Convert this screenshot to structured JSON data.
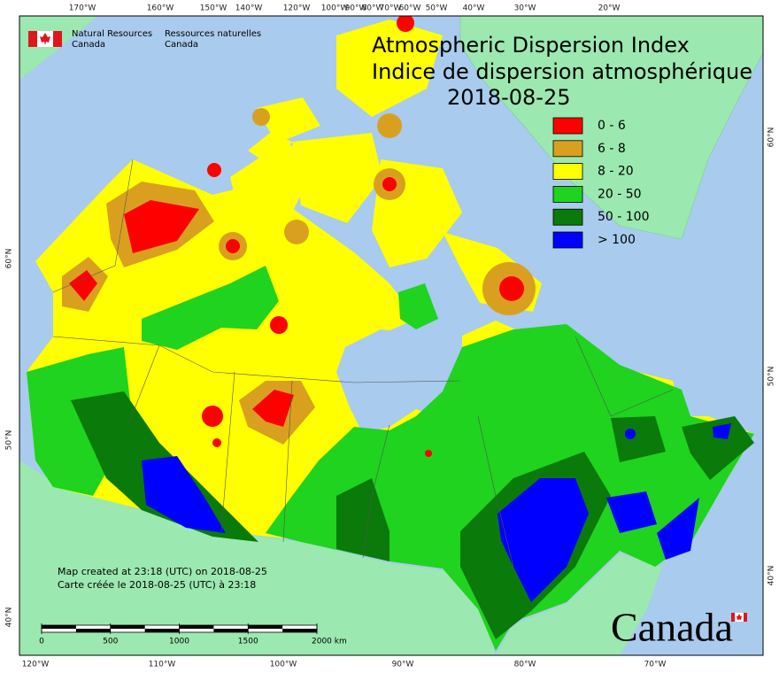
{
  "header": {
    "agency_en": [
      "Natural Resources",
      "Canada"
    ],
    "agency_fr": [
      "Ressources naturelles",
      "Canada"
    ]
  },
  "title": [
    "Atmospheric Dispersion Index",
    "Indice de dispersion atmosphérique",
    "2018-08-25"
  ],
  "legend": [
    {
      "label": "0 - 6",
      "color": "#ff0000"
    },
    {
      "label": "6 - 8",
      "color": "#d9a020"
    },
    {
      "label": "8 - 20",
      "color": "#ffff00"
    },
    {
      "label": "20 - 50",
      "color": "#1fd31f"
    },
    {
      "label": "50 - 100",
      "color": "#0a7a0a"
    },
    {
      "label": "> 100",
      "color": "#0000ff"
    }
  ],
  "top_longitudes": [
    "170°W",
    "160°W",
    "150°W",
    "140°W",
    "120°W",
    "100°W",
    "90°W",
    "80°W",
    "70°W",
    "60°W",
    "50°W",
    "40°W",
    "30°W",
    "20°W"
  ],
  "bottom_longitudes": [
    "120°W",
    "110°W",
    "100°W",
    "90°W",
    "80°W",
    "70°W"
  ],
  "left_latitudes": [
    "60°N",
    "50°N",
    "40°N"
  ],
  "right_latitudes": [
    "60°N",
    "50°N",
    "40°N"
  ],
  "notes": [
    "Map created at 23:18 (UTC) on 2018-08-25",
    "Carte créée le 2018-08-25 (UTC) à 23:18"
  ],
  "scale_bar": {
    "ticks": [
      0,
      500,
      1000,
      1500,
      {
        "value": 2000,
        "label": "2000 km"
      }
    ]
  },
  "wordmark": "Canada"
}
